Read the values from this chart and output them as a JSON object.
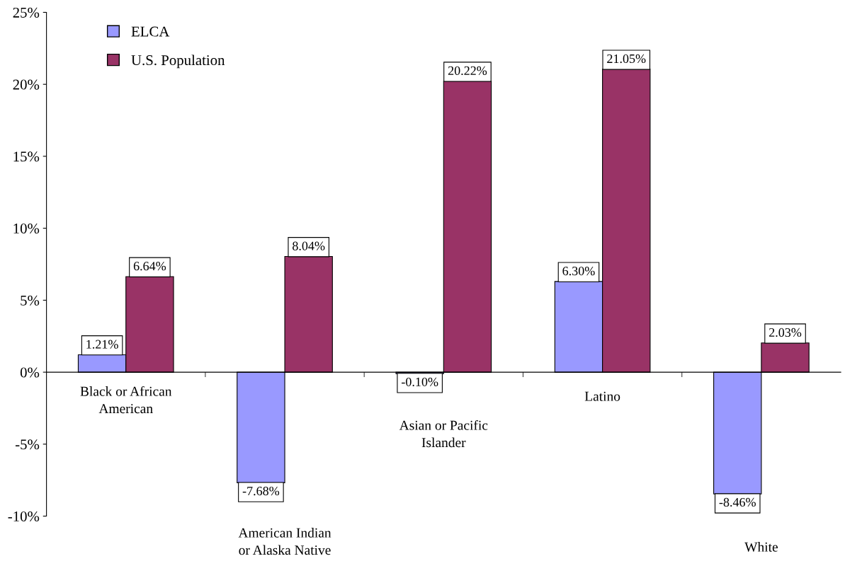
{
  "chart_data": {
    "type": "bar",
    "categories": [
      "Black or African\nAmerican",
      "American Indian\nor Alaska Native",
      "Asian or Pacific\nIslander",
      "Latino",
      "White"
    ],
    "series": [
      {
        "name": "ELCA",
        "color": "#9999ff",
        "values": [
          1.21,
          -7.68,
          -0.1,
          6.3,
          -8.46
        ],
        "value_labels": [
          "1.21%",
          "-7.68%",
          "-0.10%",
          "6.30%",
          "-8.46%"
        ]
      },
      {
        "name": "U.S. Population",
        "color": "#993366",
        "values": [
          6.64,
          8.04,
          20.22,
          21.05,
          2.03
        ],
        "value_labels": [
          "6.64%",
          "8.04%",
          "20.22%",
          "21.05%",
          "2.03%"
        ]
      }
    ],
    "ylim": [
      -10,
      25
    ],
    "yticks": [
      {
        "value": -10,
        "label": "-10%"
      },
      {
        "value": -5,
        "label": "-5%"
      },
      {
        "value": 0,
        "label": "0%"
      },
      {
        "value": 5,
        "label": "5%"
      },
      {
        "value": 10,
        "label": "10%"
      },
      {
        "value": 15,
        "label": "15%"
      },
      {
        "value": 20,
        "label": "20%"
      },
      {
        "value": 25,
        "label": "25%"
      }
    ],
    "grid": false,
    "legend": "top left"
  }
}
